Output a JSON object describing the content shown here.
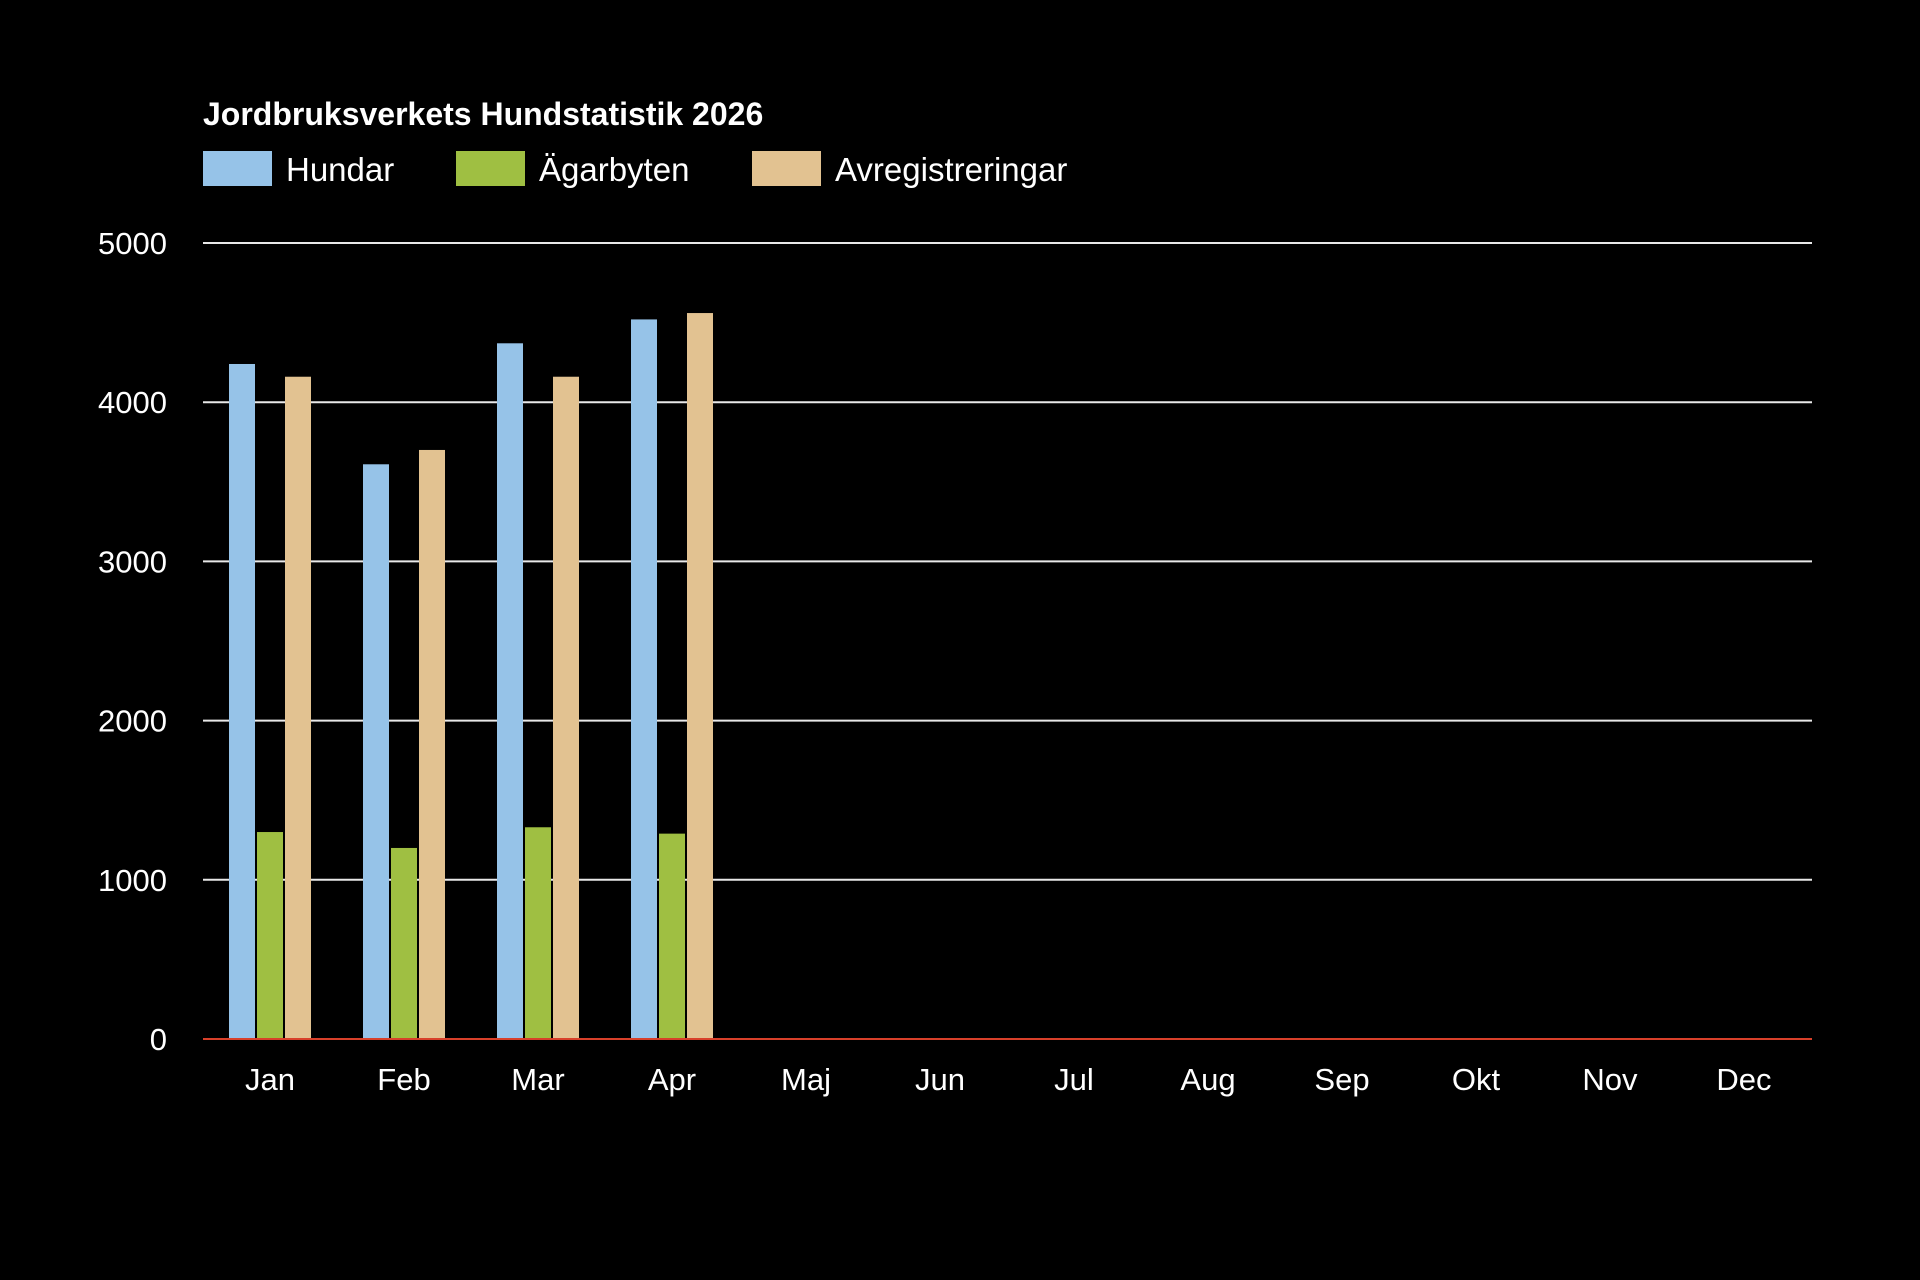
{
  "chart_data": {
    "type": "bar",
    "title": "Jordbruksverkets Hundstatistik 2026",
    "xlabel": "",
    "ylabel": "",
    "ylim": [
      0,
      5000
    ],
    "yticks": [
      0,
      1000,
      2000,
      3000,
      4000,
      5000
    ],
    "grid": true,
    "legend_position": "top-left",
    "categories": [
      "Jan",
      "Feb",
      "Mar",
      "Apr",
      "Maj",
      "Jun",
      "Jul",
      "Aug",
      "Sep",
      "Okt",
      "Nov",
      "Dec"
    ],
    "series": [
      {
        "name": "Hundar",
        "color": "#96c3e8",
        "values": [
          4240,
          3610,
          4370,
          4520,
          0,
          0,
          0,
          0,
          0,
          0,
          0,
          0
        ]
      },
      {
        "name": "Ägarbyten",
        "color": "#9fbf42",
        "values": [
          1300,
          1200,
          1330,
          1290,
          0,
          0,
          0,
          0,
          0,
          0,
          0,
          0
        ]
      },
      {
        "name": "Avregistreringar",
        "color": "#e2c291",
        "values": [
          4160,
          3700,
          4160,
          4560,
          0,
          0,
          0,
          0,
          0,
          0,
          0,
          0
        ]
      }
    ],
    "colors": {
      "background": "#000000",
      "text": "#ffffff",
      "gridline": "#e8e8e8",
      "baseline": "#d8402a"
    }
  }
}
